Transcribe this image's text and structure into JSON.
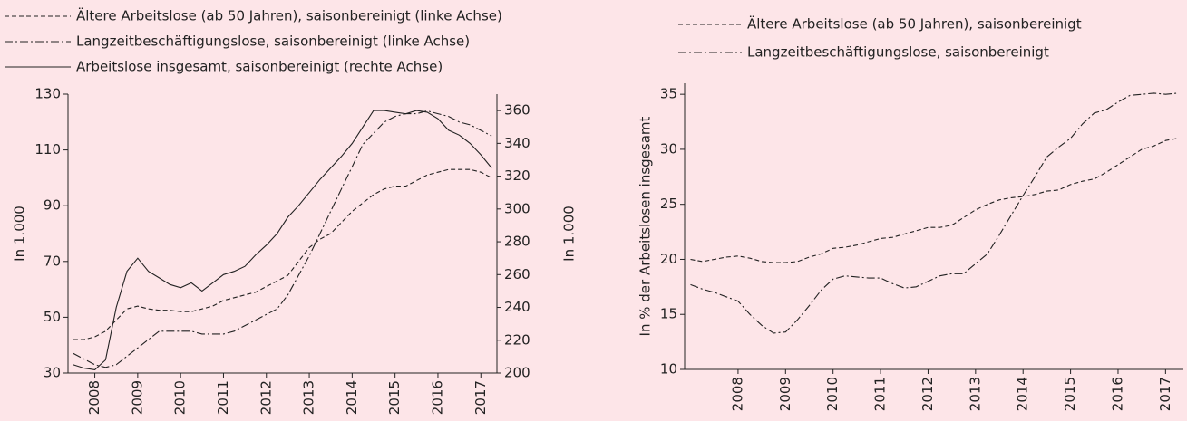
{
  "chart_data": [
    {
      "type": "line",
      "ylabel": "In 1.000",
      "y2label": "In 1.000",
      "categories": [
        null,
        null,
        "2008",
        null,
        null,
        null,
        "2009",
        null,
        null,
        null,
        "2010",
        null,
        null,
        null,
        "2011",
        null,
        null,
        null,
        "2012",
        null,
        null,
        null,
        "2013",
        null,
        null,
        null,
        "2014",
        null,
        null,
        null,
        "2015",
        null,
        null,
        null,
        "2016",
        null,
        null,
        null,
        "2017",
        null
      ],
      "ylim": [
        30,
        130
      ],
      "yticks": [
        30,
        50,
        70,
        90,
        110,
        130
      ],
      "y2lim": [
        200,
        370
      ],
      "y2ticks": [
        200,
        220,
        240,
        260,
        280,
        300,
        320,
        340,
        360
      ],
      "series": [
        {
          "name": "Ältere Arbeitslose (ab 50 Jahren), saisonbereinigt (linke Achse)",
          "color": "#222222",
          "style": "dashed",
          "values": [
            42,
            42,
            43,
            45,
            49,
            53,
            54,
            53,
            52.5,
            52.5,
            52,
            52,
            53,
            54,
            56,
            57,
            58,
            59,
            61,
            63,
            65,
            70,
            75,
            78,
            80,
            84,
            88,
            91,
            94,
            96,
            97,
            97,
            99,
            101,
            102,
            103,
            103,
            103,
            102,
            100
          ]
        },
        {
          "name": "Langzeitbeschäftigungslose, saisonbereinigt (linke Achse)",
          "color": "#222222",
          "style": "dashdot",
          "values": [
            37,
            35,
            33,
            32,
            33,
            36,
            39,
            42,
            45,
            45,
            45,
            45,
            44,
            44,
            44,
            45,
            47,
            49,
            51,
            53,
            58,
            65,
            72,
            80,
            88,
            96,
            104,
            112,
            116,
            120,
            122,
            123,
            123,
            124,
            123,
            122,
            120,
            119,
            117,
            115
          ]
        },
        {
          "name": "Arbeitslose insgesamt, saisonbereinigt (rechte Achse)",
          "color": "#222222",
          "style": "solid",
          "axis": "y2",
          "values": [
            205,
            203,
            202,
            208,
            240,
            262,
            270,
            262,
            258,
            254,
            252,
            255,
            250,
            255,
            260,
            262,
            265,
            272,
            278,
            285,
            295,
            302,
            310,
            318,
            325,
            332,
            340,
            350,
            360,
            360,
            359,
            358,
            360,
            359,
            355,
            348,
            345,
            340,
            333,
            325
          ]
        }
      ]
    },
    {
      "type": "line",
      "ylabel": "In % der Arbeitslosen insgesamt",
      "categories": [
        null,
        null,
        null,
        null,
        "2008",
        null,
        null,
        null,
        "2009",
        null,
        null,
        null,
        "2010",
        null,
        null,
        null,
        "2011",
        null,
        null,
        null,
        "2012",
        null,
        null,
        null,
        "2013",
        null,
        null,
        null,
        "2014",
        null,
        null,
        null,
        "2015",
        null,
        null,
        null,
        "2016",
        null,
        null,
        null,
        "2017",
        null
      ],
      "ylim": [
        10,
        36
      ],
      "yticks": [
        10,
        15,
        20,
        25,
        30,
        35
      ],
      "series": [
        {
          "name": "Ältere Arbeitslose (ab 50 Jahren), saisonbereinigt",
          "color": "#222222",
          "style": "dashed",
          "values": [
            20,
            19.8,
            20,
            20.2,
            20.3,
            20.1,
            19.8,
            19.7,
            19.7,
            19.8,
            20.2,
            20.5,
            21,
            21.1,
            21.3,
            21.6,
            21.9,
            22,
            22.3,
            22.6,
            22.9,
            22.9,
            23.1,
            23.8,
            24.5,
            25,
            25.4,
            25.6,
            25.7,
            25.9,
            26.2,
            26.3,
            26.8,
            27.1,
            27.3,
            27.9,
            28.6,
            29.3,
            30,
            30.3,
            30.8,
            31
          ]
        },
        {
          "name": "Langzeitbeschäftigungslose, saisonbereinigt",
          "color": "#222222",
          "style": "dashdot",
          "values": [
            17.7,
            17.3,
            17,
            16.6,
            16.2,
            15,
            14,
            13.3,
            13.4,
            14.5,
            15.8,
            17.2,
            18.2,
            18.5,
            18.4,
            18.3,
            18.3,
            17.8,
            17.4,
            17.5,
            18,
            18.5,
            18.7,
            18.7,
            19.6,
            20.5,
            22.2,
            24,
            25.8,
            27.5,
            29.3,
            30.2,
            31,
            32.3,
            33.3,
            33.6,
            34.3,
            34.9,
            35,
            35.1,
            35,
            35.1
          ]
        }
      ]
    }
  ]
}
